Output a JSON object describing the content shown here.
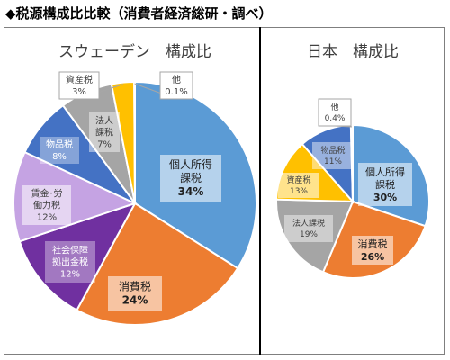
{
  "heading": "◆税源構成比比較（消費者経済総研・調べ）",
  "chart_data": [
    {
      "type": "pie",
      "title": "スウェーデン　構成比",
      "colors": {
        "personal": "#5b9bd5",
        "consumption": "#ed7d31",
        "social": "#7030a0",
        "wage": "#c5a3e3",
        "goods": "#4472c4",
        "corporate": "#a5a5a5",
        "asset": "#ffc000",
        "other": "#d9d9d9"
      },
      "slices": [
        {
          "key": "personal",
          "name": "個人所得\n課税",
          "value": 34,
          "pct": "34%"
        },
        {
          "key": "consumption",
          "name": "消費税",
          "value": 24,
          "pct": "24%"
        },
        {
          "key": "social",
          "name": "社会保障\n拠出金税",
          "value": 12,
          "pct": "12%"
        },
        {
          "key": "wage",
          "name": "賃金･労\n働力税",
          "value": 12,
          "pct": "12%"
        },
        {
          "key": "goods",
          "name": "物品税",
          "value": 8,
          "pct": "8%"
        },
        {
          "key": "corporate",
          "name": "法人\n課税",
          "value": 7,
          "pct": "7%"
        },
        {
          "key": "asset",
          "name": "資産税",
          "value": 3,
          "pct": "3%"
        },
        {
          "key": "other",
          "name": "他",
          "value": 0.1,
          "pct": "0.1%"
        }
      ]
    },
    {
      "type": "pie",
      "title": "日本　構成比",
      "colors": {
        "personal": "#5b9bd5",
        "consumption": "#ed7d31",
        "corporate": "#a5a5a5",
        "asset": "#ffc000",
        "goods": "#4472c4",
        "other": "#d9d9d9"
      },
      "slices": [
        {
          "key": "personal",
          "name": "個人所得\n課税",
          "value": 30,
          "pct": "30%"
        },
        {
          "key": "consumption",
          "name": "消費税",
          "value": 26,
          "pct": "26%"
        },
        {
          "key": "corporate",
          "name": "法人課税",
          "value": 19,
          "pct": "19%"
        },
        {
          "key": "asset",
          "name": "資産税",
          "value": 13,
          "pct": "13%"
        },
        {
          "key": "goods",
          "name": "物品税",
          "value": 11,
          "pct": "11%"
        },
        {
          "key": "other",
          "name": "他",
          "value": 0.4,
          "pct": "0.4%"
        }
      ]
    }
  ]
}
